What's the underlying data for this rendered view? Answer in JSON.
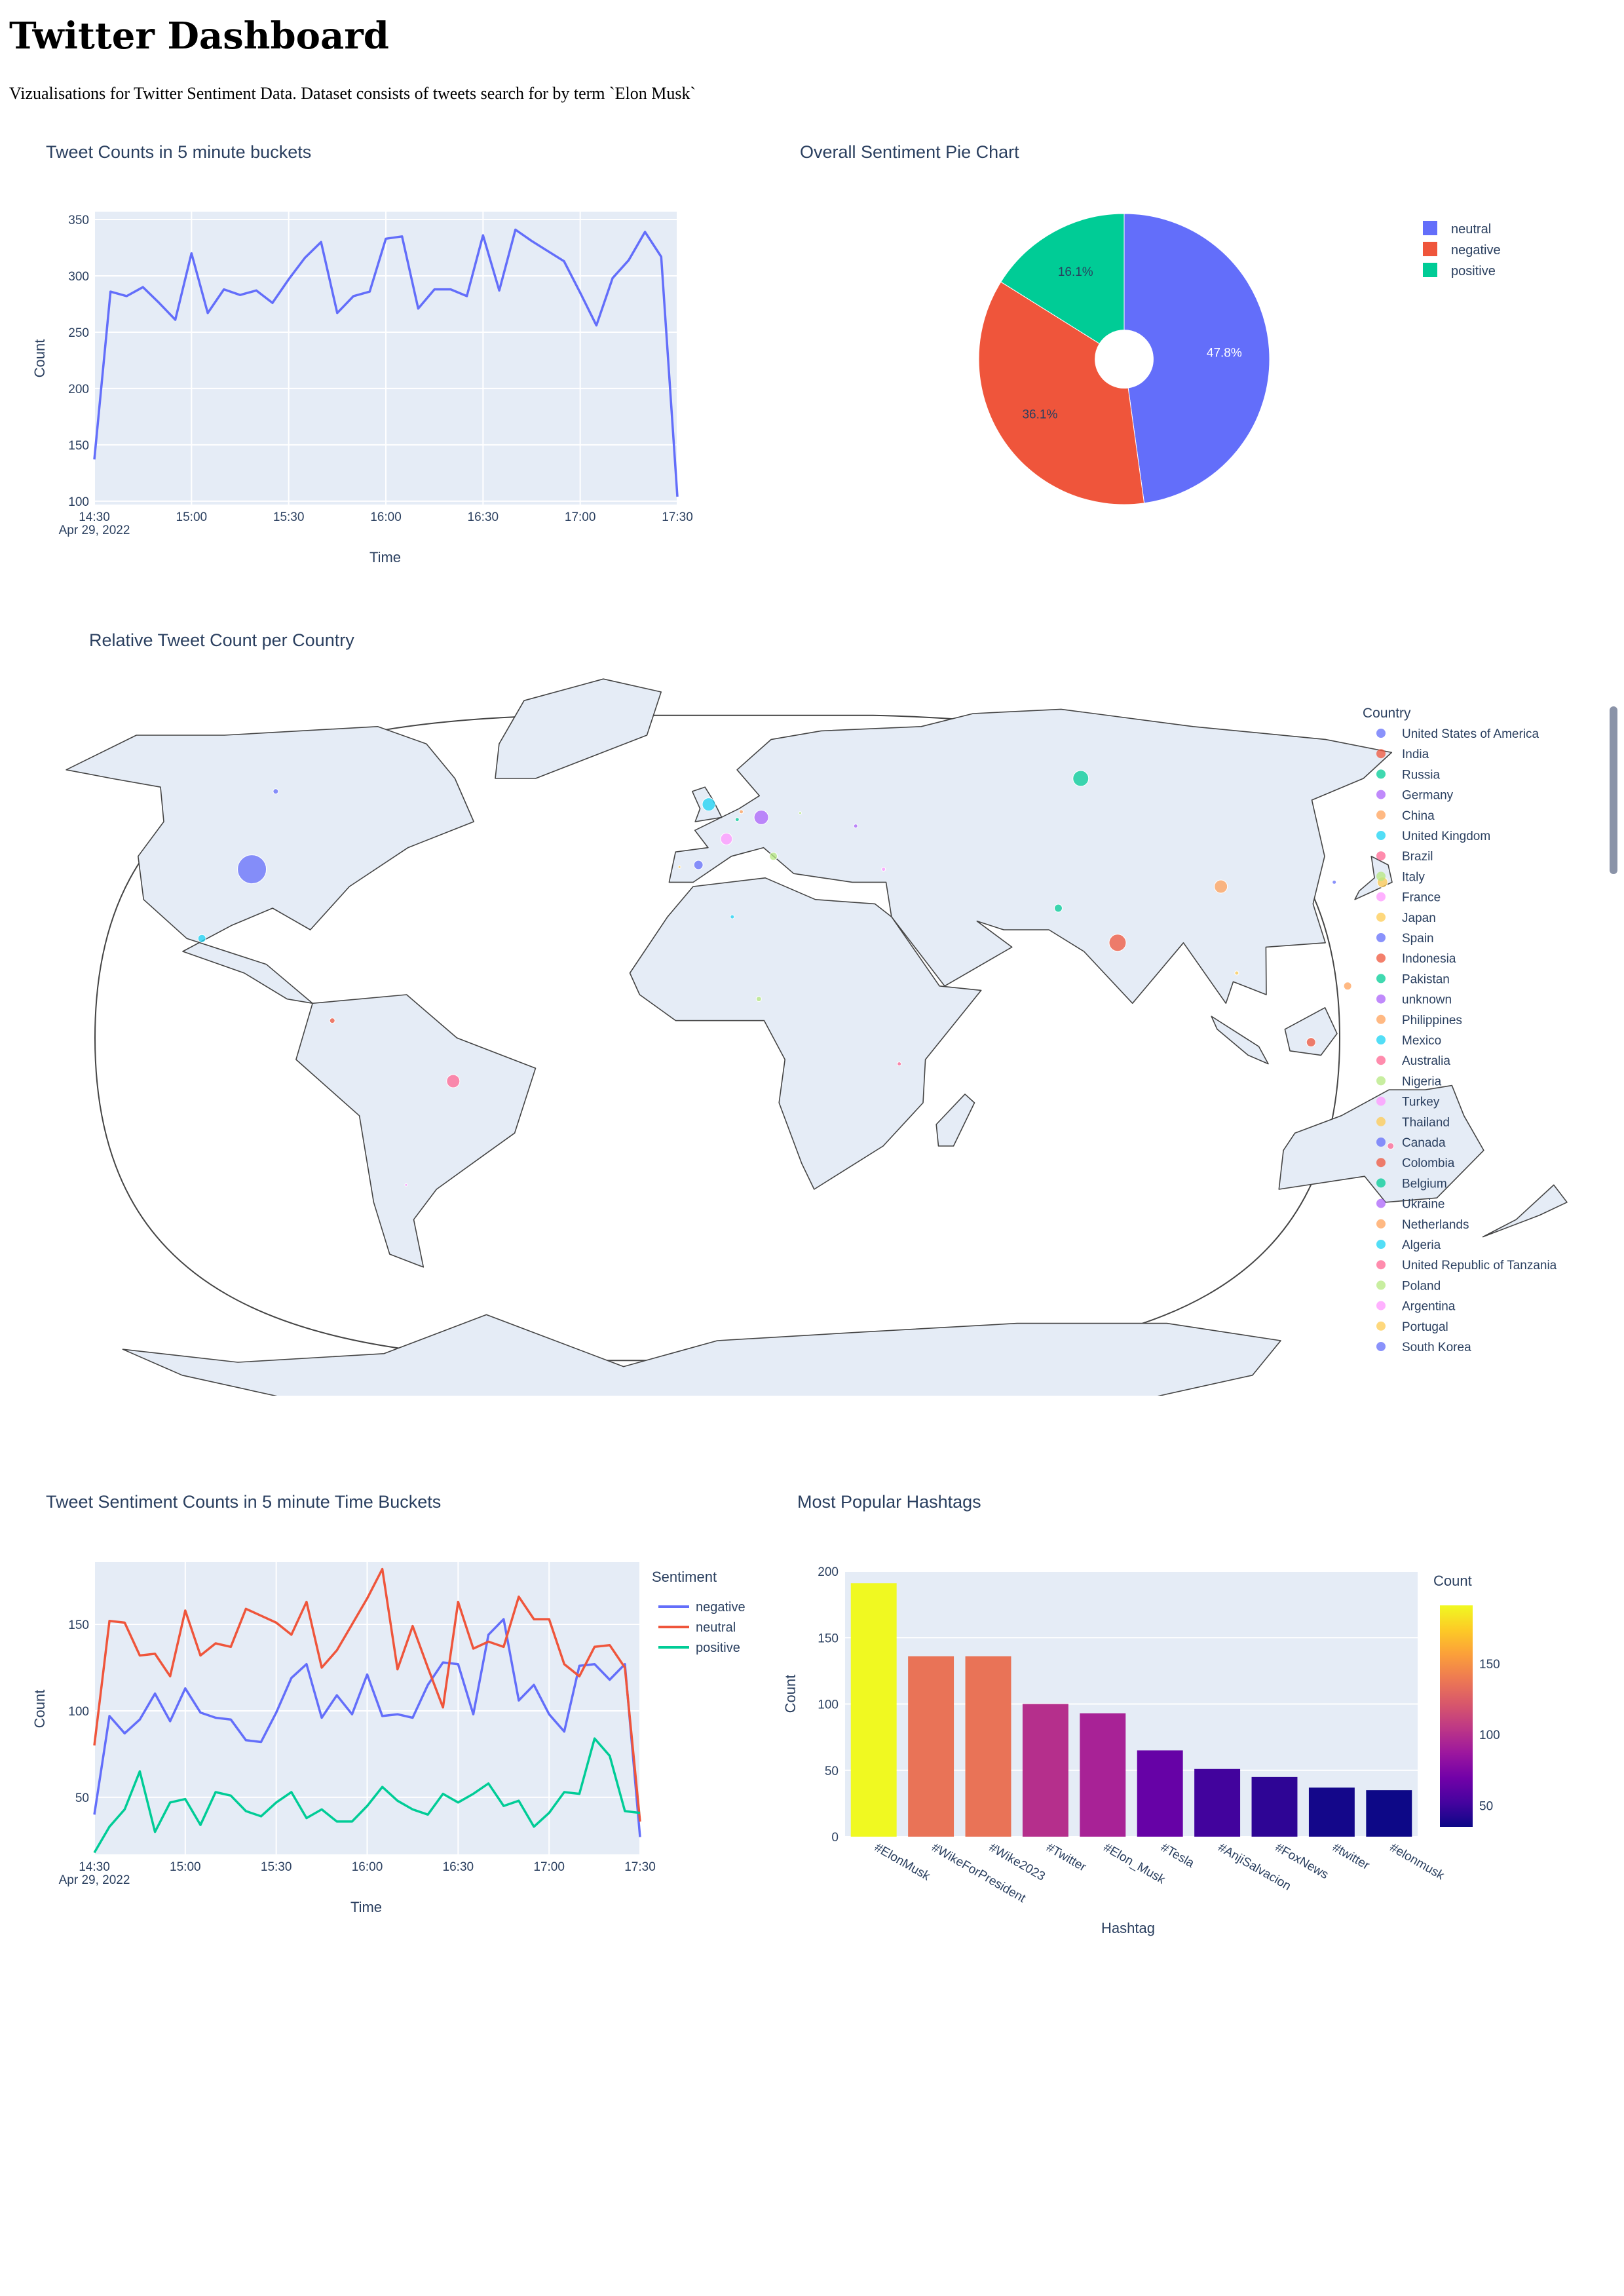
{
  "page": {
    "title": "Twitter Dashboard",
    "description": "Vizualisations for Twitter Sentiment Data. Dataset consists of tweets search for by term `Elon Musk`"
  },
  "colors": {
    "plot_bg": "#e5ecf6",
    "text": "#2a3f5f",
    "series": [
      "#636efa",
      "#ef553b",
      "#00cc96",
      "#ab63fa",
      "#ffa15a",
      "#19d3f3",
      "#ff6692",
      "#b6e880",
      "#ff97ff",
      "#fecb52"
    ]
  },
  "chart_data": [
    {
      "id": "tweet-counts",
      "type": "line",
      "title": "Tweet Counts in 5 minute buckets",
      "xlabel": "Time",
      "ylabel": "Count",
      "date_label": "Apr 29, 2022",
      "x_ticks": [
        "14:30",
        "15:00",
        "15:30",
        "16:00",
        "16:30",
        "17:00",
        "17:30"
      ],
      "y_ticks": [
        100,
        150,
        200,
        250,
        300,
        350
      ],
      "ylim": [
        97,
        357
      ],
      "x_start": "14:30",
      "x_interval_minutes": 5,
      "values": [
        137,
        286,
        282,
        290,
        276,
        261,
        320,
        267,
        288,
        283,
        287,
        276,
        297,
        316,
        330,
        267,
        282,
        286,
        333,
        335,
        271,
        288,
        288,
        282,
        336,
        287,
        341,
        331,
        322,
        313,
        285,
        256,
        298,
        314,
        339,
        317,
        104
      ],
      "line_color": "#636efa"
    },
    {
      "id": "sentiment-pie",
      "type": "pie",
      "title": "Overall Sentiment Pie Chart",
      "hole": 0.2,
      "slices": [
        {
          "label": "neutral",
          "value": 47.8,
          "text": "47.8%",
          "color": "#636efa"
        },
        {
          "label": "negative",
          "value": 36.1,
          "text": "36.1%",
          "color": "#ef553b"
        },
        {
          "label": "positive",
          "value": 16.1,
          "text": "16.1%",
          "color": "#00cc96"
        }
      ]
    },
    {
      "id": "country-map",
      "type": "scatter",
      "title": "Relative Tweet Count per Country",
      "legend_title": "Country",
      "countries": [
        {
          "name": "United States of America",
          "lon": -98,
          "lat": 39,
          "size": 22,
          "color": "#636efa"
        },
        {
          "name": "India",
          "lon": 79,
          "lat": 22,
          "size": 13,
          "color": "#ef553b"
        },
        {
          "name": "Russia",
          "lon": 90,
          "lat": 60,
          "size": 12,
          "color": "#00cc96"
        },
        {
          "name": "Germany",
          "lon": 10,
          "lat": 51,
          "size": 11,
          "color": "#ab63fa"
        },
        {
          "name": "China",
          "lon": 104,
          "lat": 35,
          "size": 10,
          "color": "#ffa15a"
        },
        {
          "name": "United Kingdom",
          "lon": -2,
          "lat": 54,
          "size": 10,
          "color": "#19d3f3"
        },
        {
          "name": "Brazil",
          "lon": -51,
          "lat": -10,
          "size": 10,
          "color": "#ff6692"
        },
        {
          "name": "Italy",
          "lon": 12,
          "lat": 42,
          "size": 6,
          "color": "#b6e880"
        },
        {
          "name": "France",
          "lon": 2,
          "lat": 46,
          "size": 9,
          "color": "#ff97ff"
        },
        {
          "name": "Japan",
          "lon": 138,
          "lat": 36,
          "size": 8,
          "color": "#fecb52"
        },
        {
          "name": "Spain",
          "lon": -4,
          "lat": 40,
          "size": 7,
          "color": "#636efa"
        },
        {
          "name": "Indonesia",
          "lon": 114,
          "lat": -1,
          "size": 7,
          "color": "#ef553b"
        },
        {
          "name": "Pakistan",
          "lon": 69,
          "lat": 30,
          "size": 6,
          "color": "#00cc96"
        },
        {
          "name": "unknown",
          "lon": -40,
          "lat": 75,
          "size": 0,
          "color": "#ab63fa"
        },
        {
          "name": "Philippines",
          "lon": 122,
          "lat": 12,
          "size": 6,
          "color": "#ffa15a"
        },
        {
          "name": "Mexico",
          "lon": -102,
          "lat": 23,
          "size": 6,
          "color": "#19d3f3"
        },
        {
          "name": "Australia",
          "lon": 134,
          "lat": -25,
          "size": 5,
          "color": "#ff6692"
        },
        {
          "name": "Nigeria",
          "lon": 8,
          "lat": 9,
          "size": 4,
          "color": "#b6e880"
        },
        {
          "name": "Turkey",
          "lon": 35,
          "lat": 39,
          "size": 3,
          "color": "#ff97ff"
        },
        {
          "name": "Thailand",
          "lon": 101,
          "lat": 15,
          "size": 3,
          "color": "#fecb52"
        },
        {
          "name": "Canada",
          "lon": -106,
          "lat": 57,
          "size": 4,
          "color": "#636efa"
        },
        {
          "name": "Colombia",
          "lon": -74,
          "lat": 4,
          "size": 4,
          "color": "#ef553b"
        },
        {
          "name": "Belgium",
          "lon": 4.5,
          "lat": 50.5,
          "size": 3,
          "color": "#00cc96"
        },
        {
          "name": "Ukraine",
          "lon": 31,
          "lat": 49,
          "size": 3,
          "color": "#ab63fa"
        },
        {
          "name": "Netherlands",
          "lon": 5.5,
          "lat": 52.3,
          "size": 3,
          "color": "#ffa15a"
        },
        {
          "name": "Algeria",
          "lon": 3,
          "lat": 28,
          "size": 3,
          "color": "#19d3f3"
        },
        {
          "name": "United Republic of Tanzania",
          "lon": 35,
          "lat": -6,
          "size": 3,
          "color": "#ff6692"
        },
        {
          "name": "Poland",
          "lon": 19,
          "lat": 52,
          "size": 2,
          "color": "#b6e880"
        },
        {
          "name": "Argentina",
          "lon": -64,
          "lat": -34,
          "size": 2,
          "color": "#ff97ff"
        },
        {
          "name": "Portugal",
          "lon": -8,
          "lat": 39.5,
          "size": 2,
          "color": "#fecb52"
        },
        {
          "name": "South Korea",
          "lon": 128,
          "lat": 36,
          "size": 3,
          "color": "#636efa"
        }
      ]
    },
    {
      "id": "sentiment-counts",
      "type": "line",
      "title": "Tweet Sentiment Counts in 5 minute Time Buckets",
      "xlabel": "Time",
      "ylabel": "Count",
      "legend_title": "Sentiment",
      "date_label": "Apr 29, 2022",
      "x_ticks": [
        "14:30",
        "15:00",
        "15:30",
        "16:00",
        "16:30",
        "17:00",
        "17:30"
      ],
      "y_ticks": [
        50,
        100,
        150
      ],
      "ylim": [
        17,
        186
      ],
      "x_start": "14:30",
      "x_interval_minutes": 5,
      "series": [
        {
          "name": "negative",
          "color": "#636efa",
          "values": [
            40,
            97,
            87,
            95,
            110,
            94,
            113,
            99,
            96,
            95,
            83,
            82,
            99,
            119,
            127,
            96,
            109,
            98,
            121,
            97,
            98,
            96,
            115,
            128,
            127,
            98,
            144,
            153,
            106,
            115,
            98,
            88,
            126,
            127,
            118,
            127,
            27
          ]
        },
        {
          "name": "neutral",
          "color": "#ef553b",
          "values": [
            80,
            152,
            151,
            132,
            133,
            120,
            158,
            132,
            139,
            137,
            159,
            155,
            151,
            144,
            163,
            125,
            135,
            150,
            165,
            182,
            124,
            149,
            125,
            102,
            163,
            136,
            140,
            137,
            166,
            153,
            153,
            127,
            120,
            137,
            138,
            125,
            36
          ]
        },
        {
          "name": "positive",
          "color": "#00cc96",
          "values": [
            18,
            33,
            43,
            65,
            30,
            47,
            49,
            34,
            53,
            51,
            42,
            39,
            47,
            53,
            38,
            43,
            36,
            36,
            45,
            56,
            48,
            43,
            40,
            52,
            47,
            52,
            58,
            45,
            48,
            33,
            41,
            53,
            52,
            84,
            74,
            42,
            41
          ]
        }
      ]
    },
    {
      "id": "hashtags",
      "type": "bar",
      "title": "Most Popular Hashtags",
      "xlabel": "Hashtag",
      "ylabel": "Count",
      "colorbar_title": "Count",
      "colorbar_ticks": [
        50,
        100,
        150
      ],
      "y_ticks": [
        0,
        50,
        100,
        150,
        200
      ],
      "ylim": [
        0,
        200
      ],
      "categories": [
        "#ElonMusk",
        "#WikeForPresident",
        "#Wike2023",
        "#Twitter",
        "#Elon_Musk",
        "#Tesla",
        "#AnjiSalvacion",
        "#FoxNews",
        "#twitter",
        "#elonmusk"
      ],
      "values": [
        191,
        136,
        136,
        100,
        93,
        65,
        51,
        45,
        37,
        35
      ]
    }
  ]
}
